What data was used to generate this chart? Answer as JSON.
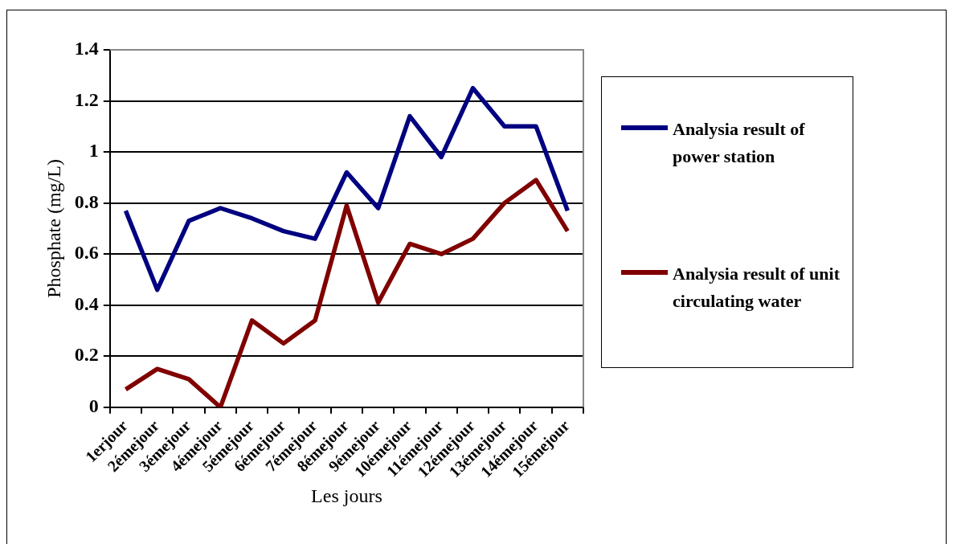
{
  "chart_data": {
    "type": "line",
    "xlabel": "Les jours",
    "ylabel": "Phosphate (mg/L)",
    "categories": [
      "1erjour",
      "2émejour",
      "3émejour",
      "4émejour",
      "5émejour",
      "6émejour",
      "7émejour",
      "8émejour",
      "9émejour",
      "10émejour",
      "11émejour",
      "12émejour",
      "13émejour",
      "14émejour",
      "15émejour"
    ],
    "series": [
      {
        "name": "Analysia result of power station",
        "color": "#000080",
        "values": [
          0.77,
          0.46,
          0.73,
          0.78,
          0.74,
          0.69,
          0.66,
          0.92,
          0.78,
          1.14,
          0.98,
          1.25,
          1.1,
          1.1,
          0.77
        ]
      },
      {
        "name": "Analysia result of unit circulating water",
        "color": "#800000",
        "values": [
          0.07,
          0.15,
          0.11,
          0.0,
          0.34,
          0.25,
          0.34,
          0.79,
          0.41,
          0.64,
          0.6,
          0.66,
          0.8,
          0.89,
          0.69
        ]
      }
    ],
    "ylim": [
      0,
      1.4
    ],
    "yticks": [
      0,
      0.2,
      0.4,
      0.6,
      0.8,
      1,
      1.2,
      1.4
    ],
    "grid": "y",
    "legend": "right",
    "marker": "none",
    "line_style": "solid"
  }
}
